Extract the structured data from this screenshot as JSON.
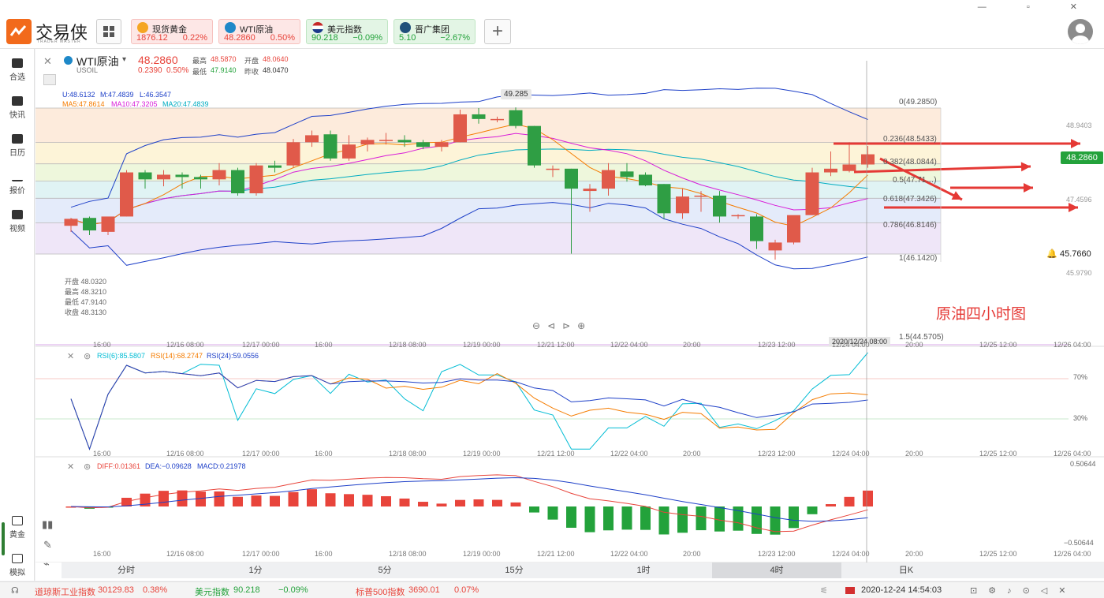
{
  "brand": {
    "name": "交易侠",
    "sub": "TRADER MASTER"
  },
  "tickers": [
    {
      "name": "现货黄金",
      "price": "1876.12",
      "change": "0.22%",
      "dir": "up",
      "color": "#f5a623"
    },
    {
      "name": "WTI原油",
      "price": "48.2860",
      "change": "0.50%",
      "dir": "up",
      "color": "#1e88c8"
    },
    {
      "name": "美元指数",
      "price": "90.218",
      "change": "−0.09%",
      "dir": "down",
      "color": "#3b5ba9"
    },
    {
      "name": "晋广集团",
      "price": "5.10",
      "change": "−2.67%",
      "dir": "down",
      "color": "#1f4f7a"
    }
  ],
  "sidebar": {
    "items": [
      {
        "label": "合选",
        "icon": "bookmark-icon"
      },
      {
        "label": "快讯",
        "icon": "news-icon"
      },
      {
        "label": "日历",
        "icon": "calendar-icon"
      },
      {
        "label": "报价",
        "icon": "trend-icon"
      },
      {
        "label": "视频",
        "icon": "play-icon"
      }
    ],
    "bottom_items": [
      {
        "label": "黄金",
        "icon": "gold-icon"
      },
      {
        "label": "模拟",
        "icon": "wallet-icon"
      }
    ]
  },
  "symbol": {
    "name": "WTI原油",
    "code": "USOIL",
    "price": "48.2860",
    "change": "0.2390",
    "change_pct": "0.50%",
    "high_label": "最高",
    "high": "48.5870",
    "open_label": "开盘",
    "open": "48.0640",
    "low_label": "最低",
    "low": "47.9140",
    "prev_label": "昨收",
    "prev": "48.0470"
  },
  "indicators": {
    "boll": {
      "u": "U:48.6132",
      "m": "M:47.4839",
      "l": "L:46.3547"
    },
    "ma": {
      "ma5": "MA5:47.8614",
      "ma10": "MA10:47.3205",
      "ma20": "MA20:47.4839"
    },
    "rsi": {
      "r6": "RSI(6):85.5807",
      "r14": "RSI(14):68.2747",
      "r24": "RSI(24):59.0556",
      "level_70": "70%",
      "level_30": "30%"
    },
    "macd": {
      "diff": "DIFF:0.01361",
      "dea": "DEA:−0.09628",
      "macd": "MACD:0.21978",
      "top": "0.50644",
      "bottom": "−0.50644"
    }
  },
  "fib": [
    {
      "label": "0(49.2850)"
    },
    {
      "label": "0.236(48.5433)"
    },
    {
      "label": "0.382(48.0844)"
    },
    {
      "label": "0.5(47.71…)"
    },
    {
      "label": "0.618(47.3426)"
    },
    {
      "label": "0.786(46.8146)"
    },
    {
      "label": "1(46.1420)"
    },
    {
      "label": "1.5(44.5705)"
    }
  ],
  "price_axis": {
    "p1": "48.9403",
    "p2": "47.4596",
    "p3": "45.9790",
    "current": "48.2860",
    "alert": "45.7660"
  },
  "high_marker": "49.285",
  "ohlc_box": {
    "open": "开盘 48.0320",
    "high": "最高 48.3210",
    "low": "最低 47.9140",
    "close": "收盘 48.3130"
  },
  "annotation": "原油四小时图",
  "crosshair_time": "2020/12/24 08:00",
  "time_labels": [
    "16:00",
    "12/16 08:00",
    "12/17 00:00",
    "16:00",
    "12/18 08:00",
    "12/19 00:00",
    "12/21 12:00",
    "12/22 04:00",
    "20:00",
    "12/23 12:00",
    "12/24 04:00",
    "20:00",
    "12/25 12:00",
    "12/26 04:00"
  ],
  "timeframes": [
    "分时",
    "1分",
    "5分",
    "15分",
    "1时",
    "4时",
    "日K"
  ],
  "active_timeframe": "4时",
  "status": {
    "dow_name": "道琼斯工业指数",
    "dow_value": "30129.83",
    "dow_chg": "0.38%",
    "usd_name": "美元指数",
    "usd_value": "90.218",
    "usd_chg": "−0.09%",
    "sp_name": "标普500指数",
    "sp_value": "3690.01",
    "sp_chg": "0.07%",
    "datetime": "2020-12-24 14:54:03"
  },
  "colors": {
    "up": "#e8443b",
    "down": "#23a23b",
    "accent": "#f26a1b",
    "arrow": "#e53935"
  },
  "chart_data": {
    "type": "candlestick",
    "candles": [
      [
        46.75,
        46.92,
        46.62,
        46.9
      ],
      [
        46.92,
        46.95,
        46.55,
        46.65
      ],
      [
        46.62,
        46.95,
        46.55,
        46.95
      ],
      [
        46.95,
        47.95,
        46.95,
        47.9
      ],
      [
        47.9,
        47.95,
        47.55,
        47.75
      ],
      [
        47.75,
        47.95,
        47.6,
        47.85
      ],
      [
        47.85,
        47.9,
        47.55,
        47.8
      ],
      [
        47.8,
        47.85,
        47.55,
        47.75
      ],
      [
        47.75,
        48.1,
        47.62,
        47.95
      ],
      [
        47.95,
        48.0,
        47.4,
        47.45
      ],
      [
        47.45,
        48.1,
        47.4,
        48.05
      ],
      [
        48.05,
        48.15,
        47.9,
        48.0
      ],
      [
        48.05,
        48.62,
        48.0,
        48.55
      ],
      [
        48.55,
        48.8,
        48.45,
        48.7
      ],
      [
        48.72,
        48.8,
        48.15,
        48.2
      ],
      [
        48.2,
        48.7,
        48.15,
        48.5
      ],
      [
        48.5,
        48.65,
        48.35,
        48.6
      ],
      [
        48.6,
        48.75,
        48.5,
        48.6
      ],
      [
        48.6,
        48.7,
        48.45,
        48.55
      ],
      [
        48.55,
        48.6,
        48.4,
        48.45
      ],
      [
        48.45,
        48.6,
        48.35,
        48.55
      ],
      [
        48.55,
        49.25,
        48.55,
        49.15
      ],
      [
        49.15,
        49.285,
        48.95,
        49.05
      ],
      [
        49.05,
        49.1,
        48.98,
        49.05
      ],
      [
        49.24,
        49.3,
        48.85,
        48.9
      ],
      [
        48.9,
        48.9,
        48.0,
        48.05
      ],
      [
        47.98,
        48.05,
        47.8,
        47.98
      ],
      [
        47.98,
        47.98,
        46.15,
        47.55
      ],
      [
        47.5,
        47.65,
        47.05,
        47.55
      ],
      [
        47.55,
        48.1,
        47.4,
        47.95
      ],
      [
        47.92,
        48.1,
        47.7,
        47.8
      ],
      [
        47.85,
        47.9,
        47.6,
        47.62
      ],
      [
        47.65,
        47.65,
        46.9,
        47.02
      ],
      [
        47.02,
        47.55,
        46.9,
        47.38
      ],
      [
        47.4,
        47.5,
        47.05,
        47.4
      ],
      [
        47.4,
        47.5,
        46.82,
        46.95
      ],
      [
        46.98,
        47.0,
        46.9,
        46.98
      ],
      [
        46.95,
        47.0,
        46.25,
        46.42
      ],
      [
        46.22,
        46.45,
        46.02,
        46.39
      ],
      [
        46.39,
        46.95,
        46.35,
        46.98
      ],
      [
        46.98,
        48.0,
        46.98,
        47.9
      ],
      [
        47.9,
        48.35,
        47.82,
        47.98
      ],
      [
        47.93,
        48.55,
        47.9,
        48.07
      ],
      [
        48.07,
        48.47,
        48.0,
        48.29
      ]
    ],
    "y_unit": "USD",
    "ylim": [
      44.5,
      49.6
    ]
  }
}
